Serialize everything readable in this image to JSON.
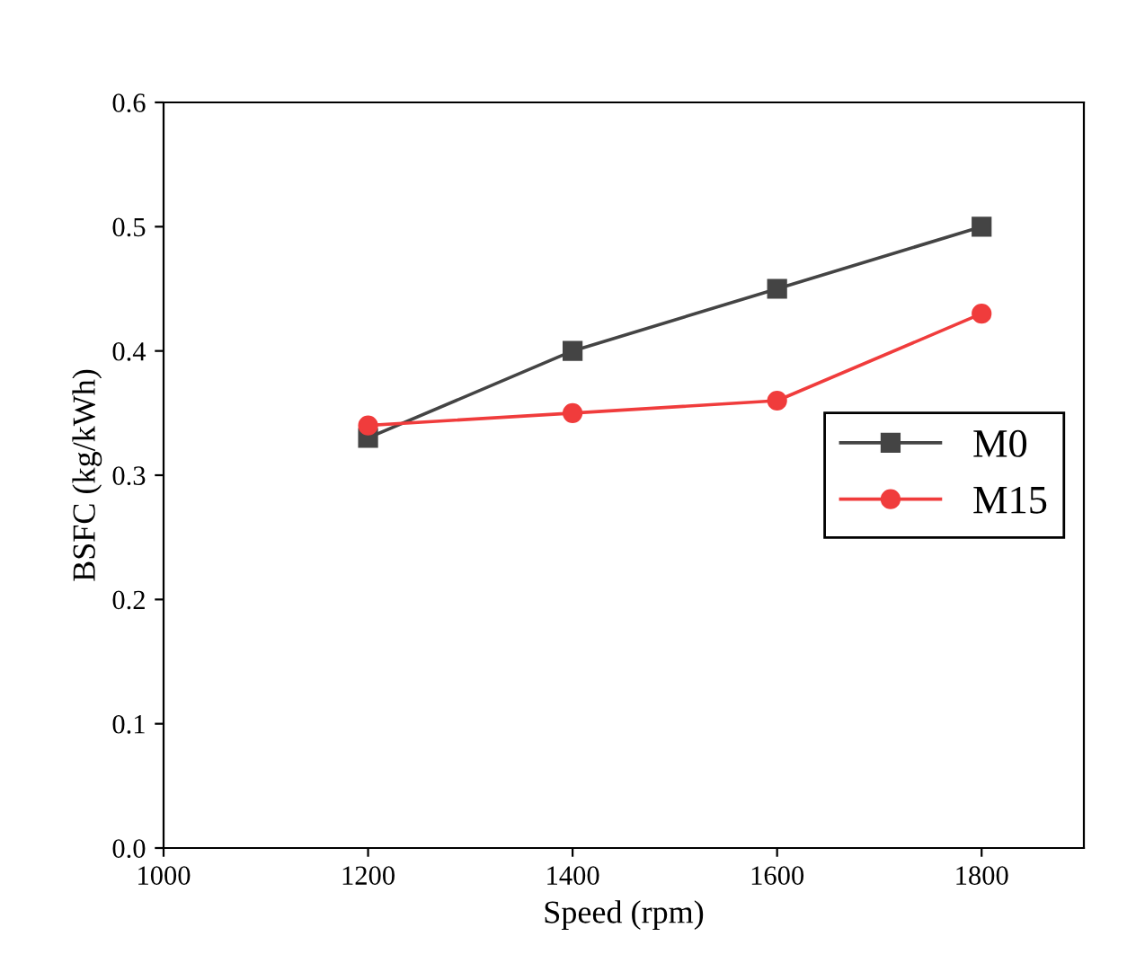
{
  "chart_data": {
    "type": "line",
    "xlabel": "Speed (rpm)",
    "ylabel": "BSFC (kg/kWh)",
    "x": [
      1200,
      1400,
      1600,
      1800
    ],
    "series": [
      {
        "name": "M0",
        "color": "#444444",
        "marker": "square",
        "values": [
          0.33,
          0.4,
          0.45,
          0.5
        ]
      },
      {
        "name": "M15",
        "color": "#f03c3c",
        "marker": "circle",
        "values": [
          0.34,
          0.35,
          0.36,
          0.43
        ]
      }
    ],
    "xlim": [
      1000,
      1900
    ],
    "xticks": [
      1000,
      1200,
      1400,
      1600,
      1800
    ],
    "ylim": [
      0,
      0.6
    ],
    "yticks": [
      {
        "value": 0,
        "label": "0.0"
      },
      {
        "value": 0.1,
        "label": "0.1"
      },
      {
        "value": 0.2,
        "label": "0.2"
      },
      {
        "value": 0.3,
        "label": "0.3"
      },
      {
        "value": 0.4,
        "label": "0.4"
      },
      {
        "value": 0.5,
        "label": "0.5"
      },
      {
        "value": 0.6,
        "label": "0.6"
      }
    ],
    "grid": false,
    "legend": "center right",
    "line_style": "solid"
  }
}
